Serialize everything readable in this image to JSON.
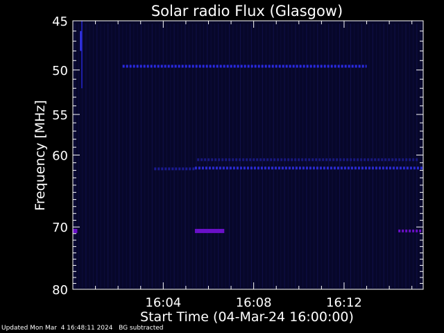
{
  "chart_data": {
    "type": "heatmap",
    "title": "Solar radio Flux (Glasgow)",
    "xlabel": "Start Time (04-Mar-24 16:00:00)",
    "ylabel": "Frequency [MHz]",
    "xlim_minutes": [
      0,
      15.5
    ],
    "x_ticks": [
      {
        "minute": 4,
        "label": "16:04"
      },
      {
        "minute": 8,
        "label": "16:08"
      },
      {
        "minute": 12,
        "label": "16:12"
      }
    ],
    "ylim_mhz": [
      45,
      80
    ],
    "y_scale": "log",
    "y_inverted": true,
    "y_ticks": [
      {
        "mhz": 45,
        "label": "45"
      },
      {
        "mhz": 50,
        "label": "50"
      },
      {
        "mhz": 55,
        "label": "55"
      },
      {
        "mhz": 60,
        "label": "60"
      },
      {
        "mhz": 70,
        "label": "70"
      },
      {
        "mhz": 80,
        "label": "80"
      }
    ],
    "background_color": "#07072a",
    "features": [
      {
        "kind": "horizontal-band",
        "mhz": 49.6,
        "from_minute": 2.2,
        "to_minute": 13.0,
        "color": "#2a2ae0",
        "dashed": true
      },
      {
        "kind": "horizontal-band",
        "mhz": 70.6,
        "from_minute": 5.4,
        "to_minute": 6.7,
        "color": "#6a10c8",
        "dashed": false
      },
      {
        "kind": "horizontal-band",
        "mhz": 70.6,
        "from_minute": 14.4,
        "to_minute": 15.5,
        "color": "#6a10c8",
        "dashed": true
      },
      {
        "kind": "horizontal-band",
        "mhz": 70.6,
        "from_minute": 0.0,
        "to_minute": 0.2,
        "color": "#6a10c8",
        "dashed": false
      },
      {
        "kind": "horizontal-band",
        "mhz": 61.7,
        "from_minute": 5.4,
        "to_minute": 15.5,
        "color": "#2a2ad0",
        "dashed": true
      },
      {
        "kind": "horizontal-band",
        "mhz": 61.8,
        "from_minute": 3.6,
        "to_minute": 5.4,
        "color": "#1a1a90",
        "dashed": true
      },
      {
        "kind": "horizontal-band",
        "mhz": 60.6,
        "from_minute": 5.5,
        "to_minute": 15.3,
        "color": "#18187e",
        "dashed": true
      },
      {
        "kind": "vertical-band",
        "minute": 0.4,
        "from_mhz": 45,
        "to_mhz": 52,
        "color": "#1e1ea8"
      },
      {
        "kind": "vertical-band",
        "minute": 0.35,
        "from_mhz": 46,
        "to_mhz": 48,
        "color": "#3a3aff"
      }
    ]
  },
  "footer": {
    "updated": "Updated Mon Mar  4 16:48:11 2024",
    "note": "BG subtracted"
  }
}
